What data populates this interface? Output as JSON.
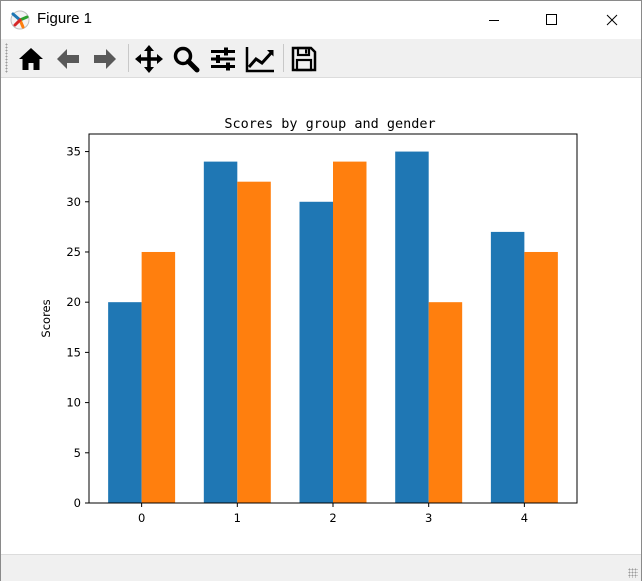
{
  "window": {
    "title": "Figure 1",
    "icon": "matplotlib-icon",
    "controls": [
      "minimize-icon",
      "maximize-icon",
      "close-icon"
    ]
  },
  "toolbar": {
    "tools": [
      "home-icon",
      "back-arrow-icon",
      "forward-arrow-icon",
      "pan-icon",
      "zoom-icon",
      "subplots-config-icon",
      "edit-axes-icon",
      "save-icon"
    ]
  },
  "chart_data": {
    "type": "bar",
    "title": "Scores by group and gender",
    "xlabel": "",
    "ylabel": "Scores",
    "categories": [
      "0",
      "1",
      "2",
      "3",
      "4"
    ],
    "series": [
      {
        "color": "#1f77b4",
        "values": [
          20,
          34,
          30,
          35,
          27
        ]
      },
      {
        "color": "#ff7f0e",
        "values": [
          25,
          32,
          34,
          20,
          25
        ]
      }
    ],
    "ylim": [
      0,
      36.75
    ],
    "yticks": [
      "0",
      "5",
      "10",
      "15",
      "20",
      "25",
      "30",
      "35"
    ],
    "grid": false
  }
}
